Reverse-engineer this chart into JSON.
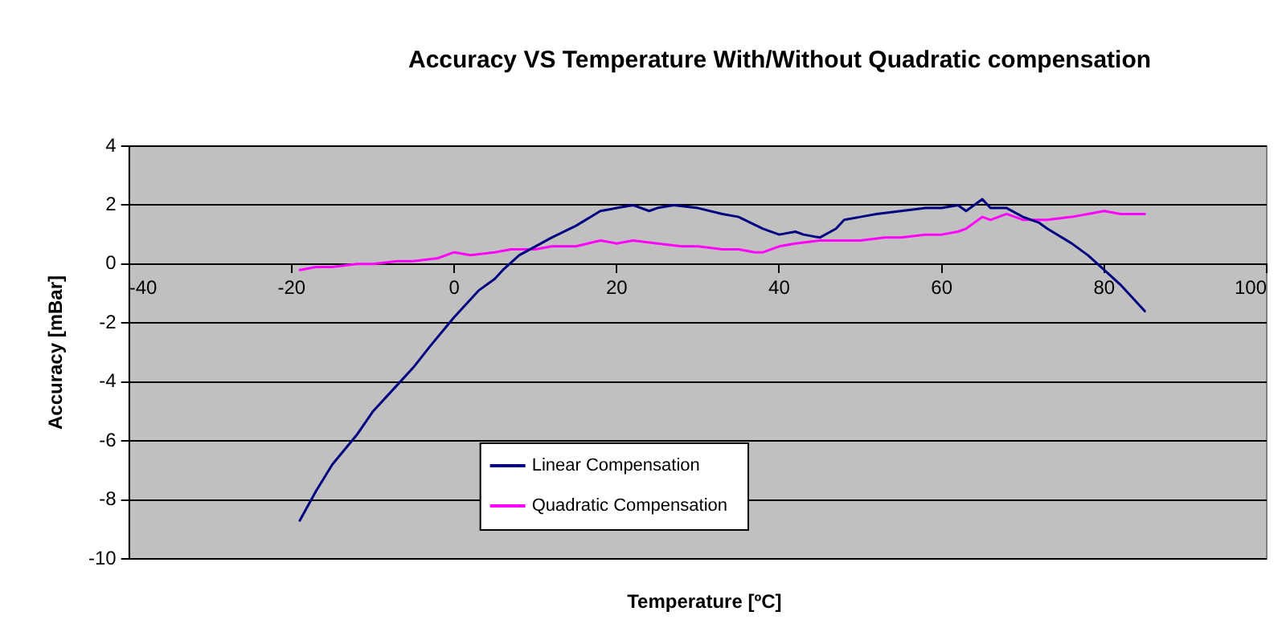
{
  "chart_data": {
    "type": "line",
    "title": "Accuracy VS Temperature With/Without Quadratic compensation",
    "xlabel": "Temperature [ºC]",
    "ylabel": "Accuracy [mBar]",
    "xlim": [
      -40,
      100
    ],
    "xticks": [
      -40,
      -20,
      0,
      20,
      40,
      60,
      80,
      100
    ],
    "ylim": [
      -10,
      4
    ],
    "yticks": [
      -10,
      -8,
      -6,
      -4,
      -2,
      0,
      2,
      4
    ],
    "grid": "y",
    "legend": "bottom",
    "marker": "none",
    "line_style": "solid",
    "series": [
      {
        "name": "Linear Compensation",
        "color": "#000080",
        "x": [
          -19,
          -17,
          -15,
          -12,
          -10,
          -7,
          -5,
          -3,
          0,
          2,
          3,
          5,
          6,
          8,
          10,
          12,
          15,
          18,
          20,
          22,
          24,
          25,
          27,
          30,
          33,
          35,
          38,
          40,
          42,
          43,
          45,
          47,
          48,
          50,
          52,
          55,
          58,
          60,
          62,
          63,
          65,
          66,
          68,
          70,
          72,
          73,
          76,
          78,
          80,
          82,
          84,
          85
        ],
        "values": [
          -8.7,
          -7.7,
          -6.8,
          -5.8,
          -5.0,
          -4.1,
          -3.5,
          -2.8,
          -1.8,
          -1.2,
          -0.9,
          -0.5,
          -0.2,
          0.3,
          0.6,
          0.9,
          1.3,
          1.8,
          1.9,
          2.0,
          1.8,
          1.9,
          2.0,
          1.9,
          1.7,
          1.6,
          1.2,
          1.0,
          1.1,
          1.0,
          0.9,
          1.2,
          1.5,
          1.6,
          1.7,
          1.8,
          1.9,
          1.9,
          2.0,
          1.8,
          2.2,
          1.9,
          1.9,
          1.6,
          1.4,
          1.2,
          0.7,
          0.3,
          -0.2,
          -0.7,
          -1.3,
          -1.6
        ]
      },
      {
        "name": "Quadratic Compensation",
        "color": "#ff00ff",
        "x": [
          -19,
          -17,
          -15,
          -12,
          -10,
          -7,
          -5,
          -2,
          0,
          2,
          5,
          7,
          10,
          12,
          15,
          18,
          20,
          22,
          25,
          28,
          30,
          33,
          35,
          37,
          38,
          40,
          42,
          45,
          48,
          50,
          53,
          55,
          58,
          60,
          62,
          63,
          65,
          66,
          68,
          70,
          73,
          76,
          78,
          80,
          82,
          85
        ],
        "values": [
          -0.2,
          -0.1,
          -0.1,
          0.0,
          0.0,
          0.1,
          0.1,
          0.2,
          0.4,
          0.3,
          0.4,
          0.5,
          0.5,
          0.6,
          0.6,
          0.8,
          0.7,
          0.8,
          0.7,
          0.6,
          0.6,
          0.5,
          0.5,
          0.4,
          0.4,
          0.6,
          0.7,
          0.8,
          0.8,
          0.8,
          0.9,
          0.9,
          1.0,
          1.0,
          1.1,
          1.2,
          1.6,
          1.5,
          1.7,
          1.5,
          1.5,
          1.6,
          1.7,
          1.8,
          1.7,
          1.7
        ]
      }
    ]
  }
}
